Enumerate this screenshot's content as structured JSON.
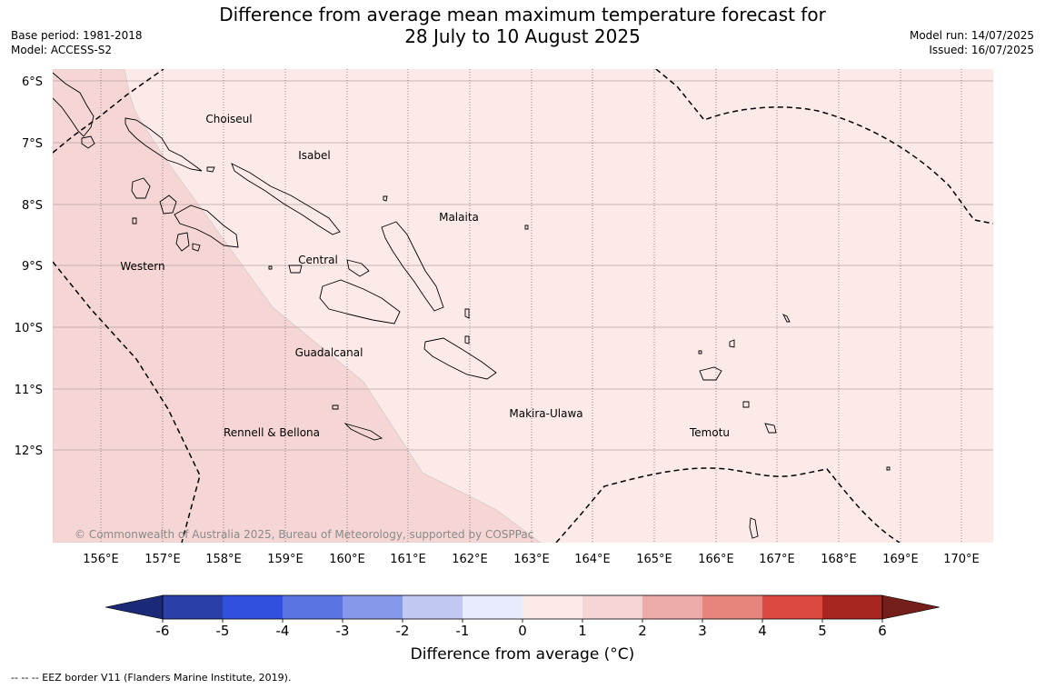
{
  "title": {
    "line1": "Difference from average mean maximum temperature forecast for",
    "line2": "28 July to 10 August 2025"
  },
  "meta_left": {
    "base_period": "Base period: 1981-2018",
    "model": "Model: ACCESS-S2"
  },
  "meta_right": {
    "model_run": "Model run: 14/07/2025",
    "issued": "Issued: 16/07/2025"
  },
  "map": {
    "lat_labels": [
      "6°S",
      "7°S",
      "8°S",
      "9°S",
      "10°S",
      "11°S",
      "12°S"
    ],
    "lon_labels": [
      "156°E",
      "157°E",
      "158°E",
      "159°E",
      "160°E",
      "161°E",
      "162°E",
      "163°E",
      "164°E",
      "165°E",
      "166°E",
      "167°E",
      "168°E",
      "169°E",
      "170°E"
    ],
    "provinces": [
      "Choiseul",
      "Isabel",
      "Malaita",
      "Western",
      "Central",
      "Guadalcanal",
      "Makira-Ulawa",
      "Rennell & Bellona",
      "Temotu"
    ],
    "copyright": "© Commonwealth of Australia 2025, Bureau of Meteorology, supported by COSPPac",
    "anomaly_zones": [
      {
        "category": "1 to 2",
        "color": "#f5d6d4"
      },
      {
        "category": "0 to 1",
        "color": "#fbeae8"
      }
    ]
  },
  "colorbar": {
    "tick_labels": [
      "-6",
      "-5",
      "-4",
      "-3",
      "-2",
      "-1",
      "0",
      "1",
      "2",
      "3",
      "4",
      "5",
      "6"
    ],
    "colors": [
      "#2a3fa8",
      "#3150de",
      "#5a74e2",
      "#8598ea",
      "#c1c9f2",
      "#e8ebfb",
      "#fbeae8",
      "#f5d6d4",
      "#ecaba8",
      "#e6857d",
      "#db4840",
      "#a82620"
    ],
    "under_color": "#1b2a78",
    "over_color": "#741f1a",
    "title": "Difference from average (°C)"
  },
  "footnote": "-- -- -- EEZ border V11 (Flanders Marine Institute, 2019)."
}
